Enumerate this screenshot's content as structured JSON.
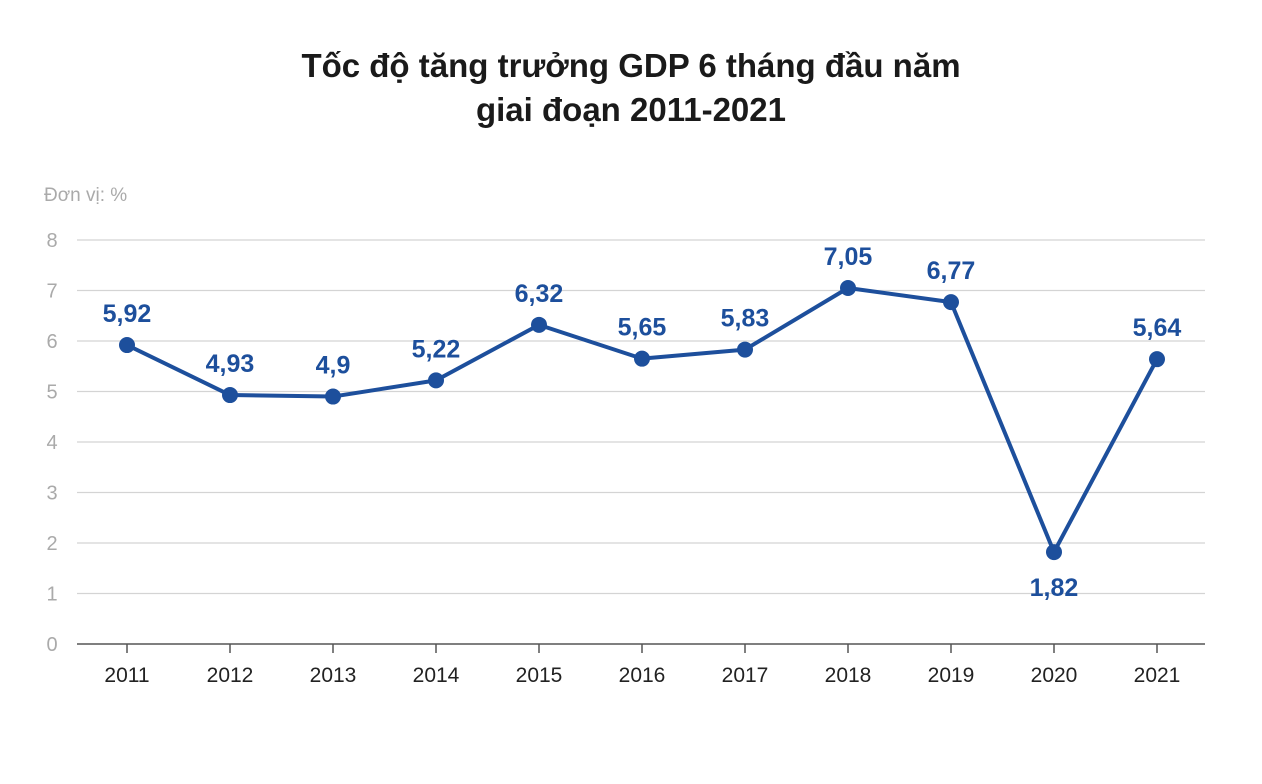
{
  "chart_data": {
    "type": "line",
    "title": [
      "Tốc độ tăng trưởng GDP 6 tháng đầu năm",
      "giai đoạn 2011-2021"
    ],
    "unit_label": "Đơn vị: %",
    "categories": [
      "2011",
      "2012",
      "2013",
      "2014",
      "2015",
      "2016",
      "2017",
      "2018",
      "2019",
      "2020",
      "2021"
    ],
    "values": [
      5.92,
      4.93,
      4.9,
      5.22,
      6.32,
      5.65,
      5.83,
      7.05,
      6.77,
      1.82,
      5.64
    ],
    "data_labels": [
      "5,92",
      "4,93",
      "4,9",
      "5,22",
      "6,32",
      "5,65",
      "5,83",
      "7,05",
      "6,77",
      "1,82",
      "5,64"
    ],
    "ylim": [
      0,
      8
    ],
    "yticks": [
      "0",
      "1",
      "2",
      "3",
      "4",
      "5",
      "6",
      "7",
      "8"
    ],
    "grid": true,
    "line_color": "#1d4f9c",
    "grid_color": "#d4d4d4",
    "axis_text_color": "#aaaaaa"
  }
}
